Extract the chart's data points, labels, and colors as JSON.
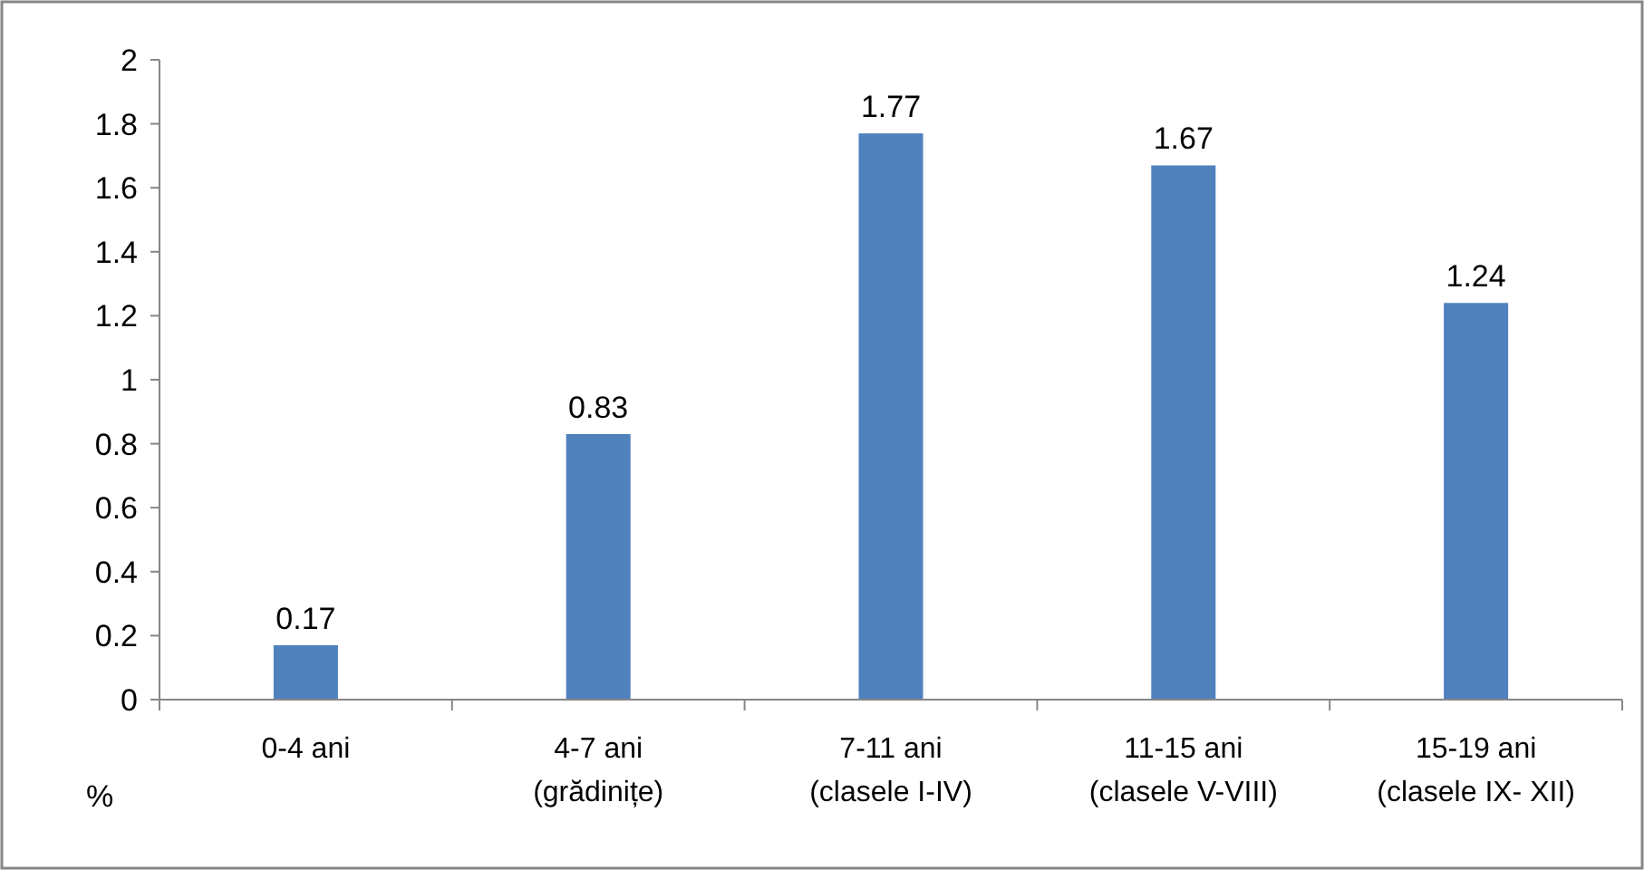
{
  "chart_data": {
    "type": "bar",
    "ylabel": "%",
    "categories": [
      "0-4 ani",
      "4-7 ani\n(grădinițe)",
      "7-11 ani\n(clasele I-IV)",
      "11-15 ani\n(clasele V-VIII)",
      "15-19 ani\n(clasele IX- XII)"
    ],
    "values": [
      0.17,
      0.83,
      1.77,
      1.67,
      1.24
    ],
    "color": "#4f81bd",
    "ylim": [
      0,
      2
    ],
    "yticks": [
      0,
      {
        "value": 0.2,
        "label": "0.2"
      },
      {
        "value": 0.4,
        "label": "0.4"
      },
      {
        "value": 0.6,
        "label": "0.6"
      },
      {
        "value": 0.8,
        "label": "0.8"
      },
      1,
      {
        "value": 1.2,
        "label": "1.2"
      },
      {
        "value": 1.4,
        "label": "1.4"
      },
      {
        "value": 1.6,
        "label": "1.6"
      },
      {
        "value": 1.8,
        "label": "1.8"
      },
      2
    ],
    "grid": false,
    "data_labels": true
  }
}
